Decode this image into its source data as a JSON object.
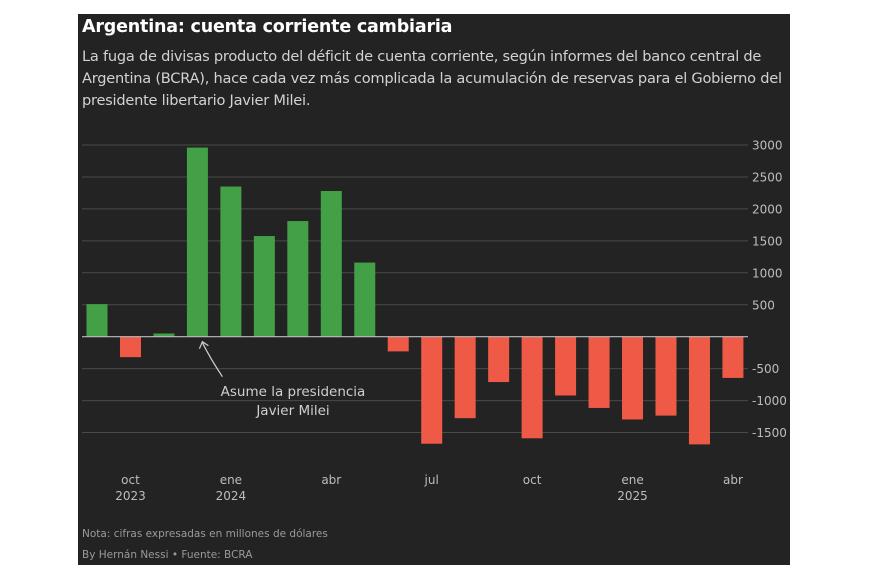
{
  "title": "Argentina: cuenta corriente cambiaria",
  "subtitle": "La fuga de divisas producto del déficit de cuenta corriente, según informes del banco central de Argentina (BCRA), hace cada vez más complicada la acumulación de reservas para el Gobierno del presidente libertario Javier Milei.",
  "note": "Nota: cifras expresadas en millones de dólares",
  "credit": "By Hernán Nessi • Fuente: BCRA",
  "colors": {
    "background": "#232323",
    "positive": "#43a047",
    "negative": "#ef5a47",
    "grid": "#4a4a4a",
    "text": "#bdbdbd"
  },
  "chart_data": {
    "type": "bar",
    "categories": [
      "sep 2023",
      "oct 2023",
      "nov 2023",
      "dic 2023",
      "ene 2024",
      "feb 2024",
      "mar 2024",
      "abr 2024",
      "may 2024",
      "jun 2024",
      "jul 2024",
      "ago 2024",
      "sep 2024",
      "oct 2024",
      "nov 2024",
      "dic 2024",
      "ene 2025",
      "feb 2025",
      "mar 2025",
      "abr 2025"
    ],
    "values": [
      510,
      -320,
      50,
      2960,
      2350,
      1575,
      1810,
      2280,
      1160,
      -230,
      -1675,
      -1275,
      -710,
      -1590,
      -920,
      -1115,
      -1295,
      -1235,
      -1685,
      -645
    ],
    "ylim": [
      -1650,
      3000
    ],
    "yticks": [
      3000,
      2500,
      2000,
      1500,
      1000,
      500,
      -500,
      -1000,
      -1500
    ],
    "ytick_labels": [
      "3000",
      "2500",
      "2000",
      "1500",
      "1000",
      "500",
      "-500",
      "-1000",
      "-1500"
    ],
    "xtick_labels": [
      {
        "index": 1,
        "month": "oct",
        "year": "2023"
      },
      {
        "index": 4,
        "month": "ene",
        "year": "2024"
      },
      {
        "index": 7,
        "month": "abr",
        "year": ""
      },
      {
        "index": 10,
        "month": "jul",
        "year": ""
      },
      {
        "index": 13,
        "month": "oct",
        "year": ""
      },
      {
        "index": 16,
        "month": "ene",
        "year": "2025"
      },
      {
        "index": 19,
        "month": "abr",
        "year": ""
      }
    ],
    "grid": true,
    "annotation": {
      "index": 3,
      "lines": [
        "Asume la presidencia",
        "Javier Milei"
      ]
    }
  }
}
